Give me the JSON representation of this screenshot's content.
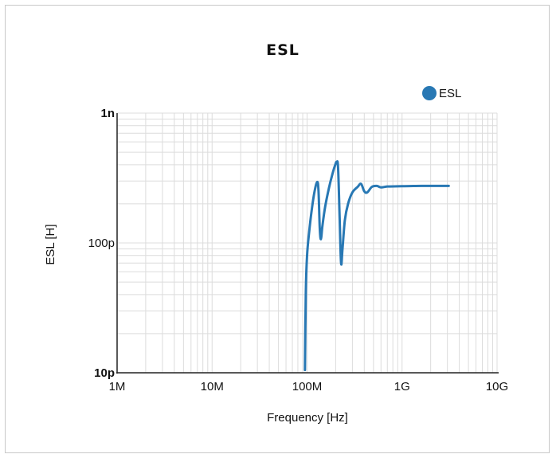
{
  "chart_data": {
    "type": "line",
    "title": "ESL",
    "xlabel": "Frequency [Hz]",
    "ylabel": "ESL [H]",
    "x_scale": "log",
    "y_scale": "log",
    "xlim": [
      1000000,
      10000000000
    ],
    "ylim": [
      1e-11,
      1e-09
    ],
    "grid": true,
    "legend_position": "top-right",
    "x_ticks": [
      {
        "value": 1000000,
        "label": "1M"
      },
      {
        "value": 10000000,
        "label": "10M"
      },
      {
        "value": 100000000,
        "label": "100M"
      },
      {
        "value": 1000000000,
        "label": "1G"
      },
      {
        "value": 10000000000,
        "label": "10G"
      }
    ],
    "y_ticks": [
      {
        "value": 1e-09,
        "label": "1n",
        "bold": true
      },
      {
        "value": 1e-10,
        "label": "100p",
        "bold": false
      },
      {
        "value": 1e-11,
        "label": "10p",
        "bold": true
      }
    ],
    "series": [
      {
        "name": "ESL",
        "color": "#2878b4",
        "points": [
          [
            95000000,
            1.05e-11
          ],
          [
            97000000,
            4.2e-11
          ],
          [
            100000000,
            8e-11
          ],
          [
            105000000,
            1.2e-10
          ],
          [
            112000000,
            1.8e-10
          ],
          [
            120000000,
            2.5e-10
          ],
          [
            128000000,
            2.95e-10
          ],
          [
            132000000,
            2.5e-10
          ],
          [
            136000000,
            1.3e-10
          ],
          [
            140000000,
            1.07e-10
          ],
          [
            145000000,
            1.35e-10
          ],
          [
            155000000,
            1.9e-10
          ],
          [
            170000000,
            2.65e-10
          ],
          [
            185000000,
            3.4e-10
          ],
          [
            198000000,
            4e-10
          ],
          [
            205000000,
            4.2e-10
          ],
          [
            212000000,
            3.8e-10
          ],
          [
            220000000,
            1.6e-10
          ],
          [
            228000000,
            7e-11
          ],
          [
            236000000,
            9e-11
          ],
          [
            250000000,
            1.5e-10
          ],
          [
            270000000,
            2e-10
          ],
          [
            300000000,
            2.45e-10
          ],
          [
            340000000,
            2.7e-10
          ],
          [
            370000000,
            2.85e-10
          ],
          [
            400000000,
            2.5e-10
          ],
          [
            430000000,
            2.45e-10
          ],
          [
            480000000,
            2.7e-10
          ],
          [
            540000000,
            2.75e-10
          ],
          [
            600000000,
            2.68e-10
          ],
          [
            700000000,
            2.72e-10
          ],
          [
            900000000,
            2.73e-10
          ],
          [
            1200000000,
            2.74e-10
          ],
          [
            1600000000,
            2.75e-10
          ],
          [
            2200000000,
            2.75e-10
          ],
          [
            3100000000,
            2.75e-10
          ]
        ]
      }
    ]
  }
}
